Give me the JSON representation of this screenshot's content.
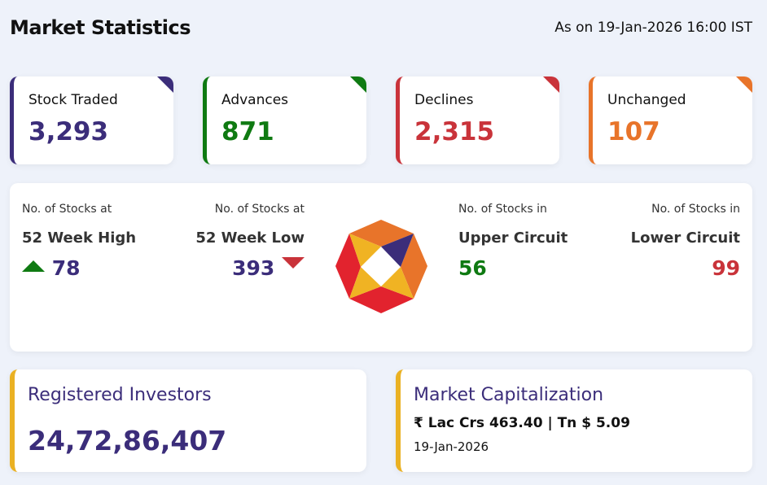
{
  "header": {
    "title": "Market Statistics",
    "as_on": "As on 19-Jan-2026 16:00 IST"
  },
  "stats": [
    {
      "label": "Stock Traded",
      "value": "3,293",
      "color": "#3b2d7a"
    },
    {
      "label": "Advances",
      "value": "871",
      "color": "#0f7a12"
    },
    {
      "label": "Declines",
      "value": "2,315",
      "color": "#c9333a"
    },
    {
      "label": "Unchanged",
      "value": "107",
      "color": "#e8742a"
    }
  ],
  "extremes": {
    "high": {
      "caption": "No. of Stocks at",
      "label": "52 Week High",
      "value": "78",
      "icon": "triangle-up-icon"
    },
    "low": {
      "caption": "No. of Stocks at",
      "label": "52 Week Low",
      "value": "393",
      "icon": "triangle-down-icon"
    },
    "upper": {
      "caption": "No. of Stocks in",
      "label": "Upper Circuit",
      "value": "56"
    },
    "lower": {
      "caption": "No. of Stocks in",
      "label": "Lower Circuit",
      "value": "99"
    }
  },
  "investors": {
    "label": "Registered Investors",
    "value": "24,72,86,407"
  },
  "mcap": {
    "label": "Market Capitalization",
    "value": "₹ Lac Crs 463.40 | Tn $ 5.09",
    "date": "19-Jan-2026"
  }
}
